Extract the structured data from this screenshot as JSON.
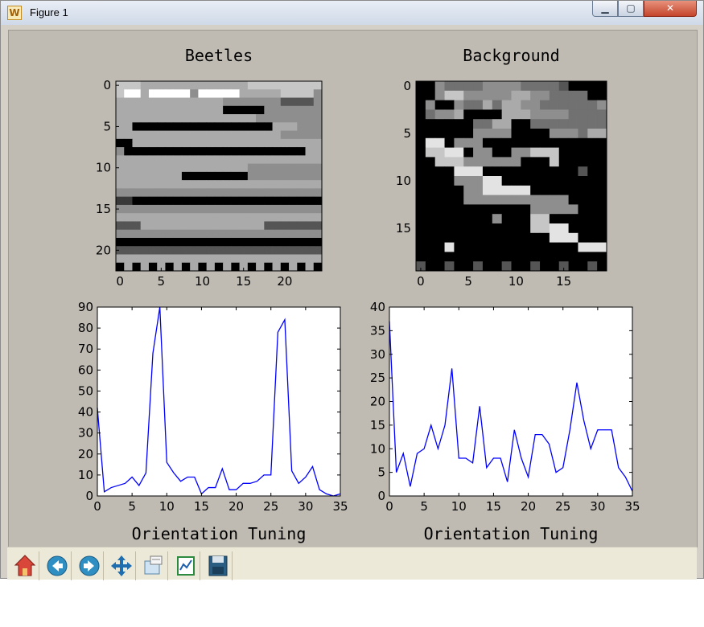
{
  "window": {
    "title": "Figure 1",
    "minimize_glyph": "▁",
    "maximize_glyph": "▢",
    "close_glyph": "✕"
  },
  "toolbar": {
    "buttons": [
      {
        "name": "home-button",
        "icon": "home-icon"
      },
      {
        "name": "back-button",
        "icon": "arrow-left-icon"
      },
      {
        "name": "forward-button",
        "icon": "arrow-right-icon"
      },
      {
        "name": "pan-button",
        "icon": "move-icon"
      },
      {
        "name": "zoom-button",
        "icon": "zoom-rect-icon"
      },
      {
        "name": "subplots-button",
        "icon": "subplots-icon"
      },
      {
        "name": "save-button",
        "icon": "floppy-icon"
      }
    ]
  },
  "chart_data": [
    {
      "type": "heatmap",
      "title": "Beetles",
      "colormap": "gray",
      "shape": [
        23,
        25
      ],
      "xticks": [
        0,
        5,
        10,
        15,
        20
      ],
      "yticks": [
        0,
        5,
        10,
        15,
        20
      ],
      "rows": [
        "7776666666666666777777777",
        "7996999995999996666677775",
        "6666666666666555555533335",
        "6666666666666000005555555",
        "6666666666666666655555555",
        "6600000000000000000666555",
        "6666666666666666666655555",
        "0066666666666666666666666",
        "5000000000000000000000066",
        "6666666666666666666666666",
        "6666666666666666555555555",
        "6666666600000000555555555",
        "6666666666666666666666666",
        "5555555555555555555555555",
        "2200000000000000000000000",
        "5555555555555555555555555",
        "6666666666666666666666666",
        "3336666666666666663333333",
        "5555555555555555555555555",
        "0000000000000000000000000",
        "3333333333333333333333333",
        "6666666666666666666666666",
        "0606060606060606060606060"
      ]
    },
    {
      "type": "heatmap",
      "title": "Background",
      "colormap": "gray",
      "shape": [
        20,
        20
      ],
      "xticks": [
        0,
        5,
        10,
        15
      ],
      "yticks": [
        0,
        5,
        10,
        15
      ],
      "rows": [
        "00544445555444430000",
        "00577555556655444400",
        "05005446466554444445",
        "04556000066655554444",
        "00000044660044444444",
        "00000055550000555466",
        "08805550000000000000",
        "07788055005577700000",
        "00777555555000700000",
        "00008880000000000300",
        "00005558800000000000",
        "00000558888800000000",
        "00000555555555550000",
        "00000000000055555000",
        "00000000500077000000",
        "00000000000077880000",
        "00000000000000888000",
        "00080000000000000888",
        "00000000000000000000",
        "30030030030030030030"
      ]
    },
    {
      "type": "line",
      "title": "Orientation Tuning",
      "xlim": [
        0,
        35
      ],
      "ylim": [
        0,
        90
      ],
      "xticks": [
        0,
        5,
        10,
        15,
        20,
        25,
        30,
        35
      ],
      "yticks": [
        0,
        10,
        20,
        30,
        40,
        50,
        60,
        70,
        80,
        90
      ],
      "color": "#0000ff",
      "series": [
        {
          "x": [
            0,
            1,
            2,
            3,
            4,
            5,
            6,
            7,
            8,
            9,
            10,
            11,
            12,
            13,
            14,
            15,
            16,
            17,
            18,
            19,
            20,
            21,
            22,
            23,
            24,
            25,
            26,
            27,
            28,
            29,
            30,
            31,
            32,
            33,
            34,
            35
          ],
          "y": [
            42,
            2,
            4,
            5,
            6,
            9,
            5,
            11,
            68,
            90,
            16,
            11,
            7,
            9,
            9,
            1,
            4,
            4,
            13,
            3,
            3,
            6,
            6,
            7,
            10,
            10,
            78,
            84,
            12,
            6,
            9,
            14,
            3,
            1,
            0,
            1
          ]
        }
      ]
    },
    {
      "type": "line",
      "title": "Orientation Tuning",
      "xlim": [
        0,
        35
      ],
      "ylim": [
        0,
        40
      ],
      "xticks": [
        0,
        5,
        10,
        15,
        20,
        25,
        30,
        35
      ],
      "yticks": [
        0,
        5,
        10,
        15,
        20,
        25,
        30,
        35,
        40
      ],
      "color": "#0000ff",
      "series": [
        {
          "x": [
            0,
            1,
            2,
            3,
            4,
            5,
            6,
            7,
            8,
            9,
            10,
            11,
            12,
            13,
            14,
            15,
            16,
            17,
            18,
            19,
            20,
            21,
            22,
            23,
            24,
            25,
            26,
            27,
            28,
            29,
            30,
            31,
            32,
            33,
            34,
            35
          ],
          "y": [
            37,
            5,
            9,
            2,
            9,
            10,
            15,
            10,
            15,
            27,
            8,
            8,
            7,
            19,
            6,
            8,
            8,
            3,
            14,
            8,
            4,
            13,
            13,
            11,
            5,
            6,
            14,
            24,
            16,
            10,
            14,
            14,
            14,
            6,
            4,
            1
          ]
        }
      ]
    }
  ]
}
